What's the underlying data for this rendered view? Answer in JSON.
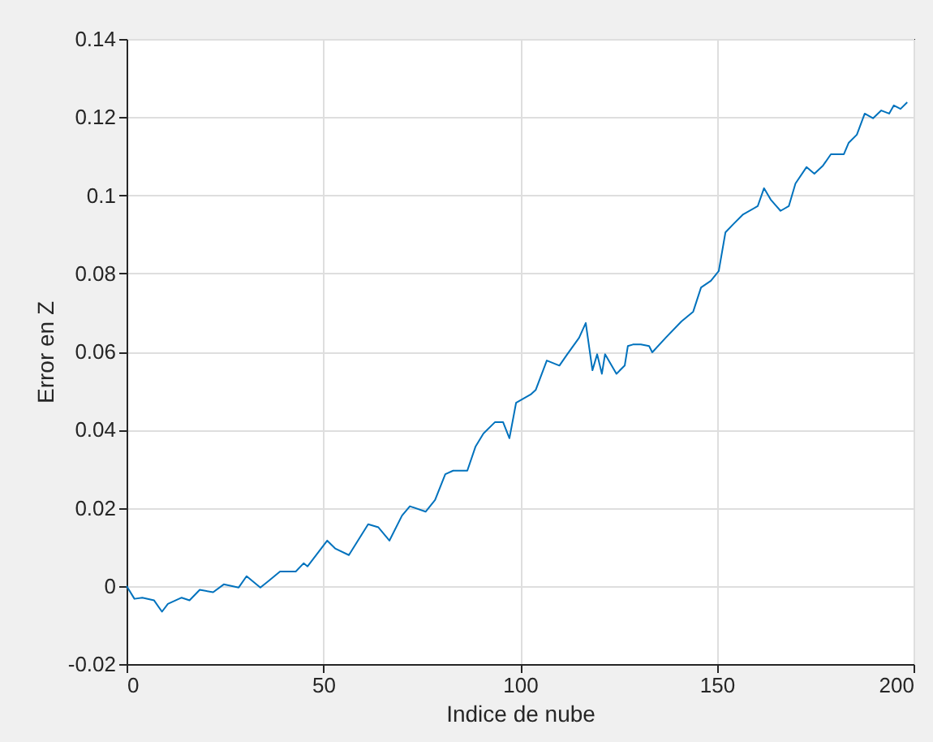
{
  "chart_data": {
    "type": "line",
    "xlabel": "Indice de nube",
    "ylabel": "Error en Z",
    "x": [
      0,
      2,
      4,
      7,
      9,
      10.5,
      14,
      16,
      18.6,
      22,
      24.7,
      28.5,
      30.5,
      34,
      36,
      39,
      43,
      45,
      46,
      51,
      53,
      56.5,
      61.4,
      64,
      66.8,
      70,
      72,
      76,
      78.4,
      81,
      83,
      86.6,
      88.7,
      90.7,
      93.6,
      95.7,
      97.3,
      99,
      102.7,
      104,
      106.8,
      110,
      112,
      115,
      116.7,
      118.4,
      119.6,
      120.8,
      121.6,
      124.5,
      126.6,
      127.4,
      128.7,
      130.7,
      132.8,
      133.6,
      137,
      141,
      144,
      146,
      148.5,
      150.5,
      152.2,
      154.2,
      156.7,
      160.4,
      162,
      163.7,
      166.2,
      168.3,
      170,
      172.8,
      174.8,
      177,
      179,
      182.3,
      183.5,
      185.6,
      187.6,
      189.7,
      191.8,
      193.8,
      195,
      196.7,
      198.4
    ],
    "series": [
      {
        "color": "#0072bd",
        "values": [
          0.0,
          -0.0033,
          -0.003,
          -0.0037,
          -0.0066,
          -0.0046,
          -0.003,
          -0.0037,
          -0.001,
          -0.0016,
          0.0004,
          -0.0004,
          0.0025,
          -0.0004,
          0.0012,
          0.0037,
          0.0037,
          0.0058,
          0.005,
          0.0116,
          0.0096,
          0.0079,
          0.0158,
          0.015,
          0.0116,
          0.018,
          0.0204,
          0.019,
          0.022,
          0.0286,
          0.0295,
          0.0295,
          0.0357,
          0.039,
          0.0419,
          0.0419,
          0.0378,
          0.0469,
          0.049,
          0.0502,
          0.0577,
          0.0564,
          0.0593,
          0.0635,
          0.0673,
          0.0552,
          0.0593,
          0.0543,
          0.0593,
          0.0543,
          0.0564,
          0.0614,
          0.0618,
          0.0618,
          0.0614,
          0.0598,
          0.0635,
          0.0677,
          0.0702,
          0.0764,
          0.0781,
          0.0806,
          0.0905,
          0.0926,
          0.0951,
          0.0972,
          0.1018,
          0.0989,
          0.096,
          0.0972,
          0.103,
          0.1072,
          0.1055,
          0.1076,
          0.1105,
          0.1105,
          0.1134,
          0.1155,
          0.1209,
          0.1197,
          0.1217,
          0.1209,
          0.123,
          0.1221,
          0.1238
        ]
      }
    ],
    "xlim": [
      0,
      200
    ],
    "xticks": [
      0,
      50,
      100,
      150,
      200
    ],
    "ylim": [
      -0.02,
      0.14
    ],
    "yticks": [
      -0.02,
      0,
      0.02,
      0.04,
      0.06,
      0.08,
      0.1,
      0.12,
      0.14
    ],
    "grid": true,
    "marker": "none",
    "line_style": "solid",
    "legend": false
  }
}
